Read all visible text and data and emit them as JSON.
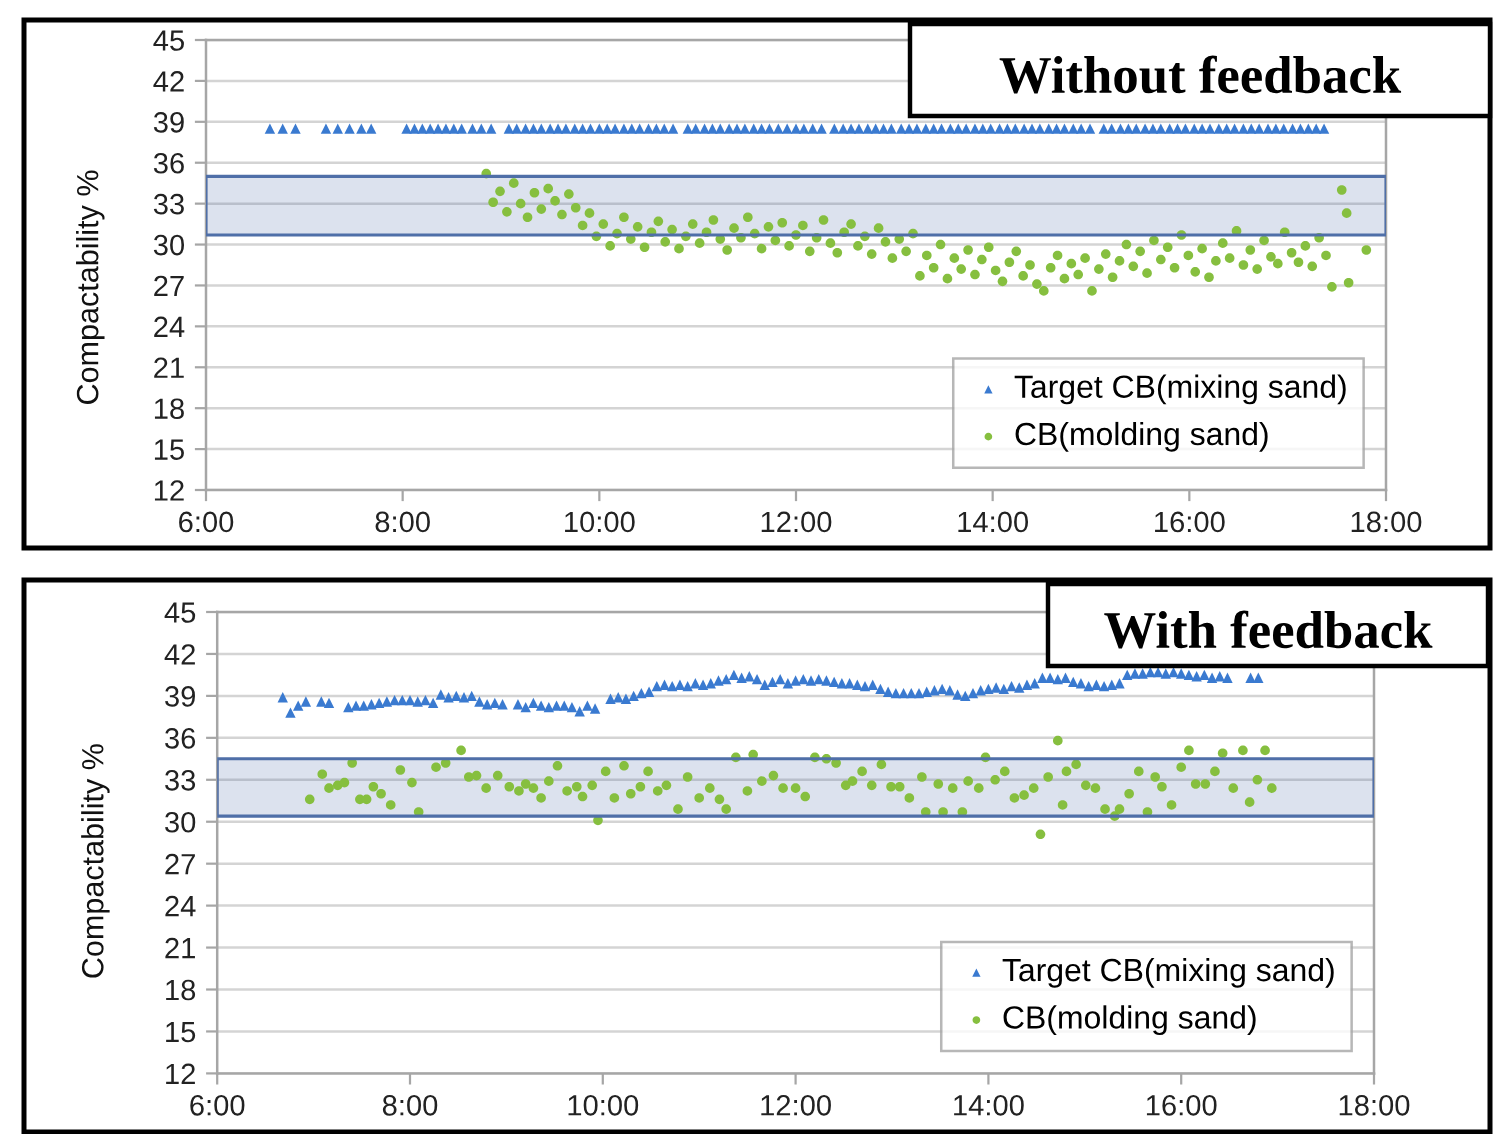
{
  "chart_data": [
    {
      "type": "scatter",
      "title": "Without feedback",
      "ylabel": "Compactability %",
      "xlim": [
        6,
        18
      ],
      "xticks": [
        {
          "value": 6,
          "label": "6:00"
        },
        {
          "value": 8,
          "label": "8:00"
        },
        {
          "value": 10,
          "label": "10:00"
        },
        {
          "value": 12,
          "label": "12:00"
        },
        {
          "value": 14,
          "label": "14:00"
        },
        {
          "value": 16,
          "label": "16:00"
        },
        {
          "value": 18,
          "label": "18:00"
        }
      ],
      "ylim": [
        12,
        45
      ],
      "yticks": [
        12,
        15,
        18,
        21,
        24,
        27,
        30,
        33,
        36,
        39,
        42,
        45
      ],
      "grid": "y",
      "legend": "bottom right",
      "bands": [
        {
          "axis": "y",
          "from": 30.7,
          "to": 35,
          "color": "#4f6fa8"
        }
      ],
      "series": [
        {
          "name": "Target CB(mixing sand)",
          "color": "#3a7ad0",
          "marker": "triangle",
          "x": [
            6.65,
            6.78,
            6.91,
            7.22,
            7.34,
            7.46,
            7.58,
            7.68,
            8.04,
            8.12,
            8.2,
            8.28,
            8.36,
            8.44,
            8.52,
            8.6,
            8.71,
            8.8,
            8.9,
            9.08,
            9.16,
            9.25,
            9.33,
            9.41,
            9.5,
            9.58,
            9.66,
            9.75,
            9.83,
            9.91,
            10.0,
            10.08,
            10.16,
            10.25,
            10.33,
            10.41,
            10.5,
            10.58,
            10.66,
            10.75,
            10.9,
            10.98,
            11.07,
            11.15,
            11.23,
            11.32,
            11.4,
            11.48,
            11.57,
            11.65,
            11.73,
            11.82,
            11.91,
            12.0,
            12.08,
            12.17,
            12.26,
            12.39,
            12.48,
            12.56,
            12.64,
            12.73,
            12.81,
            12.89,
            12.97,
            13.07,
            13.15,
            13.23,
            13.32,
            13.4,
            13.48,
            13.57,
            13.65,
            13.73,
            13.82,
            13.9,
            13.98,
            14.07,
            14.15,
            14.23,
            14.32,
            14.4,
            14.48,
            14.57,
            14.65,
            14.73,
            14.82,
            14.9,
            14.99,
            15.13,
            15.21,
            15.3,
            15.38,
            15.46,
            15.55,
            15.63,
            15.71,
            15.8,
            15.88,
            15.96,
            16.05,
            16.13,
            16.21,
            16.3,
            16.38,
            16.46,
            16.55,
            16.63,
            16.71,
            16.8,
            16.88,
            16.96,
            17.05,
            17.13,
            17.21,
            17.29,
            17.37
          ],
          "values": [
            38.5,
            38.5,
            38.5,
            38.5,
            38.5,
            38.5,
            38.5,
            38.5,
            38.5,
            38.5,
            38.5,
            38.5,
            38.5,
            38.5,
            38.5,
            38.5,
            38.5,
            38.5,
            38.5,
            38.5,
            38.5,
            38.5,
            38.5,
            38.5,
            38.5,
            38.5,
            38.5,
            38.5,
            38.5,
            38.5,
            38.5,
            38.5,
            38.5,
            38.5,
            38.5,
            38.5,
            38.5,
            38.5,
            38.5,
            38.5,
            38.5,
            38.5,
            38.5,
            38.5,
            38.5,
            38.5,
            38.5,
            38.5,
            38.5,
            38.5,
            38.5,
            38.5,
            38.5,
            38.5,
            38.5,
            38.5,
            38.5,
            38.5,
            38.5,
            38.5,
            38.5,
            38.5,
            38.5,
            38.5,
            38.5,
            38.5,
            38.5,
            38.5,
            38.5,
            38.5,
            38.5,
            38.5,
            38.5,
            38.5,
            38.5,
            38.5,
            38.5,
            38.5,
            38.5,
            38.5,
            38.5,
            38.5,
            38.5,
            38.5,
            38.5,
            38.5,
            38.5,
            38.5,
            38.5,
            38.5,
            38.5,
            38.5,
            38.5,
            38.5,
            38.5,
            38.5,
            38.5,
            38.5,
            38.5,
            38.5,
            38.5,
            38.5,
            38.5,
            38.5,
            38.5,
            38.5,
            38.5,
            38.5,
            38.5,
            38.5,
            38.5,
            38.5,
            38.5,
            38.5,
            38.5,
            38.5,
            38.5
          ]
        },
        {
          "name": "CB(molding sand)",
          "color": "#86bf3f",
          "marker": "circle",
          "x": [
            8.85,
            8.92,
            8.99,
            9.06,
            9.13,
            9.2,
            9.27,
            9.34,
            9.41,
            9.48,
            9.55,
            9.62,
            9.69,
            9.76,
            9.83,
            9.9,
            9.97,
            10.04,
            10.11,
            10.18,
            10.25,
            10.32,
            10.39,
            10.46,
            10.53,
            10.6,
            10.67,
            10.74,
            10.81,
            10.88,
            10.95,
            11.02,
            11.09,
            11.16,
            11.23,
            11.3,
            11.37,
            11.44,
            11.51,
            11.58,
            11.65,
            11.72,
            11.79,
            11.86,
            11.93,
            12.0,
            12.07,
            12.14,
            12.21,
            12.28,
            12.35,
            12.42,
            12.49,
            12.56,
            12.63,
            12.7,
            12.77,
            12.84,
            12.91,
            12.98,
            13.05,
            13.12,
            13.19,
            13.26,
            13.33,
            13.4,
            13.47,
            13.54,
            13.61,
            13.68,
            13.75,
            13.82,
            13.89,
            13.96,
            14.03,
            14.1,
            14.17,
            14.24,
            14.31,
            14.38,
            14.45,
            14.52,
            14.59,
            14.66,
            14.73,
            14.8,
            14.87,
            14.94,
            15.01,
            15.08,
            15.15,
            15.22,
            15.29,
            15.36,
            15.43,
            15.5,
            15.57,
            15.64,
            15.71,
            15.78,
            15.85,
            15.92,
            15.99,
            16.06,
            16.13,
            16.2,
            16.27,
            16.34,
            16.41,
            16.48,
            16.55,
            16.62,
            16.69,
            16.76,
            16.83,
            16.9,
            16.97,
            17.04,
            17.11,
            17.18,
            17.25,
            17.32,
            17.39,
            17.45,
            17.55,
            17.6,
            17.62,
            17.8
          ],
          "values": [
            35.2,
            33.1,
            33.9,
            32.4,
            34.5,
            33.0,
            32.0,
            33.8,
            32.6,
            34.1,
            33.2,
            32.2,
            33.7,
            32.7,
            31.4,
            32.3,
            30.6,
            31.5,
            29.9,
            30.8,
            32.0,
            30.4,
            31.3,
            29.8,
            30.9,
            31.7,
            30.2,
            31.1,
            29.7,
            30.6,
            31.5,
            30.1,
            30.9,
            31.8,
            30.4,
            29.6,
            31.2,
            30.5,
            32.0,
            30.8,
            29.7,
            31.3,
            30.3,
            31.6,
            29.9,
            30.7,
            31.4,
            29.5,
            30.5,
            31.8,
            30.1,
            29.4,
            30.9,
            31.5,
            29.9,
            30.6,
            29.3,
            31.2,
            30.2,
            29.0,
            30.4,
            29.5,
            30.8,
            27.7,
            29.2,
            28.3,
            30.0,
            27.5,
            29.0,
            28.2,
            29.6,
            27.8,
            28.9,
            29.8,
            28.1,
            27.3,
            28.7,
            29.5,
            27.7,
            28.5,
            27.1,
            26.6,
            28.3,
            29.2,
            27.5,
            28.6,
            27.8,
            29.0,
            26.6,
            28.2,
            29.3,
            27.6,
            28.8,
            30.0,
            28.4,
            29.5,
            27.9,
            30.3,
            28.9,
            29.8,
            28.3,
            30.7,
            29.2,
            28.0,
            29.7,
            27.6,
            28.8,
            30.1,
            29.0,
            31.0,
            28.5,
            29.6,
            28.2,
            30.3,
            29.1,
            28.6,
            30.9,
            29.4,
            28.7,
            29.9,
            28.4,
            30.5,
            29.2,
            26.9,
            34.0,
            32.3,
            27.2,
            29.6
          ]
        }
      ]
    },
    {
      "type": "scatter",
      "title": "With feedback",
      "ylabel": "Compactability %",
      "xlim": [
        6,
        18
      ],
      "xticks": [
        {
          "value": 6,
          "label": "6:00"
        },
        {
          "value": 8,
          "label": "8:00"
        },
        {
          "value": 10,
          "label": "10:00"
        },
        {
          "value": 12,
          "label": "12:00"
        },
        {
          "value": 14,
          "label": "14:00"
        },
        {
          "value": 16,
          "label": "16:00"
        },
        {
          "value": 18,
          "label": "18:00"
        }
      ],
      "ylim": [
        12,
        45
      ],
      "yticks": [
        12,
        15,
        18,
        21,
        24,
        27,
        30,
        33,
        36,
        39,
        42,
        45
      ],
      "grid": "y",
      "legend": "bottom right",
      "bands": [
        {
          "axis": "y",
          "from": 30.4,
          "to": 34.5,
          "color": "#4f6fa8"
        }
      ],
      "series": [
        {
          "name": "Target CB(mixing sand)",
          "color": "#3a7ad0",
          "marker": "triangle",
          "x": [
            6.68,
            6.76,
            6.84,
            6.92,
            7.08,
            7.16,
            7.36,
            7.44,
            7.52,
            7.6,
            7.68,
            7.76,
            7.84,
            7.92,
            8.0,
            8.08,
            8.16,
            8.24,
            8.32,
            8.4,
            8.48,
            8.56,
            8.64,
            8.72,
            8.8,
            8.88,
            8.96,
            9.12,
            9.2,
            9.28,
            9.36,
            9.44,
            9.52,
            9.6,
            9.68,
            9.76,
            9.84,
            9.92,
            10.08,
            10.16,
            10.24,
            10.32,
            10.4,
            10.48,
            10.56,
            10.64,
            10.72,
            10.8,
            10.88,
            10.96,
            11.04,
            11.12,
            11.2,
            11.28,
            11.36,
            11.44,
            11.52,
            11.6,
            11.68,
            11.76,
            11.84,
            11.92,
            12.0,
            12.08,
            12.16,
            12.24,
            12.32,
            12.4,
            12.48,
            12.56,
            12.64,
            12.72,
            12.8,
            12.88,
            12.96,
            13.04,
            13.12,
            13.2,
            13.28,
            13.36,
            13.44,
            13.52,
            13.6,
            13.68,
            13.76,
            13.84,
            13.92,
            14.0,
            14.08,
            14.16,
            14.24,
            14.32,
            14.4,
            14.48,
            14.56,
            14.64,
            14.72,
            14.8,
            14.88,
            14.96,
            15.04,
            15.12,
            15.2,
            15.28,
            15.36,
            15.44,
            15.52,
            15.6,
            15.68,
            15.76,
            15.84,
            15.92,
            16.0,
            16.08,
            16.16,
            16.24,
            16.32,
            16.4,
            16.48,
            16.72,
            16.8
          ],
          "values": [
            38.9,
            37.8,
            38.3,
            38.6,
            38.6,
            38.5,
            38.2,
            38.3,
            38.3,
            38.4,
            38.5,
            38.6,
            38.7,
            38.7,
            38.7,
            38.6,
            38.7,
            38.5,
            39.1,
            38.9,
            39.0,
            38.9,
            39.0,
            38.6,
            38.4,
            38.5,
            38.4,
            38.4,
            38.2,
            38.5,
            38.3,
            38.2,
            38.3,
            38.3,
            38.2,
            37.9,
            38.3,
            38.1,
            38.8,
            38.9,
            38.8,
            39.0,
            39.2,
            39.3,
            39.7,
            39.8,
            39.7,
            39.8,
            39.7,
            39.9,
            39.8,
            39.9,
            40.1,
            40.2,
            40.5,
            40.3,
            40.4,
            40.2,
            39.8,
            40.0,
            40.2,
            39.9,
            40.1,
            40.2,
            40.1,
            40.2,
            40.1,
            40.0,
            39.9,
            39.9,
            39.8,
            39.7,
            39.8,
            39.5,
            39.3,
            39.2,
            39.2,
            39.2,
            39.2,
            39.3,
            39.4,
            39.5,
            39.4,
            39.1,
            39.0,
            39.2,
            39.4,
            39.5,
            39.6,
            39.5,
            39.7,
            39.6,
            39.8,
            39.9,
            40.3,
            40.3,
            40.2,
            40.3,
            40.0,
            39.9,
            39.7,
            39.8,
            39.7,
            39.8,
            39.9,
            40.5,
            40.6,
            40.6,
            40.7,
            40.7,
            40.6,
            40.7,
            40.6,
            40.5,
            40.4,
            40.5,
            40.3,
            40.4,
            40.3,
            40.3,
            40.3
          ]
        },
        {
          "name": "CB(molding sand)",
          "color": "#86bf3f",
          "marker": "circle",
          "x": [
            6.96,
            7.09,
            7.16,
            7.25,
            7.32,
            7.4,
            7.48,
            7.55,
            7.62,
            7.7,
            7.8,
            7.9,
            8.02,
            8.09,
            8.27,
            8.37,
            8.53,
            8.61,
            8.69,
            8.79,
            8.91,
            9.03,
            9.13,
            9.2,
            9.28,
            9.36,
            9.44,
            9.53,
            9.63,
            9.73,
            9.79,
            9.89,
            9.95,
            10.03,
            10.12,
            10.22,
            10.29,
            10.39,
            10.47,
            10.57,
            10.66,
            10.78,
            10.88,
            11.0,
            11.11,
            11.21,
            11.28,
            11.38,
            11.5,
            11.56,
            11.65,
            11.77,
            11.87,
            12.0,
            12.1,
            12.2,
            12.32,
            12.42,
            12.52,
            12.59,
            12.69,
            12.79,
            12.89,
            12.99,
            13.08,
            13.18,
            13.31,
            13.35,
            13.48,
            13.53,
            13.63,
            13.73,
            13.79,
            13.9,
            13.97,
            14.07,
            14.17,
            14.27,
            14.37,
            14.47,
            14.54,
            14.62,
            14.72,
            14.77,
            14.81,
            14.91,
            15.01,
            15.11,
            15.21,
            15.31,
            15.36,
            15.46,
            15.56,
            15.65,
            15.73,
            15.8,
            15.9,
            16.0,
            16.08,
            16.15,
            16.25,
            16.35,
            16.43,
            16.54,
            16.64,
            16.71,
            16.79,
            16.87,
            16.94
          ],
          "values": [
            31.6,
            33.4,
            32.4,
            32.6,
            32.8,
            34.2,
            31.6,
            31.6,
            32.5,
            32.0,
            31.2,
            33.7,
            32.8,
            30.7,
            33.9,
            34.2,
            35.1,
            33.2,
            33.3,
            32.4,
            33.3,
            32.5,
            32.2,
            32.7,
            32.4,
            31.7,
            32.9,
            34.0,
            32.2,
            32.5,
            31.8,
            32.6,
            30.1,
            33.6,
            31.7,
            34.0,
            32.0,
            32.5,
            33.6,
            32.2,
            32.6,
            30.9,
            33.2,
            31.7,
            32.4,
            31.6,
            30.9,
            34.6,
            32.2,
            34.8,
            32.9,
            33.3,
            32.4,
            32.4,
            31.8,
            34.6,
            34.5,
            34.2,
            32.6,
            32.9,
            33.6,
            32.6,
            34.1,
            32.5,
            32.5,
            31.7,
            33.2,
            30.7,
            32.7,
            30.7,
            32.4,
            30.7,
            32.9,
            32.4,
            34.6,
            33.0,
            33.6,
            31.7,
            31.9,
            32.4,
            29.1,
            33.2,
            35.8,
            31.2,
            33.6,
            34.1,
            32.6,
            32.4,
            30.9,
            30.4,
            30.9,
            32.0,
            33.6,
            30.7,
            33.2,
            32.5,
            31.2,
            33.9,
            35.1,
            32.7,
            32.7,
            33.6,
            34.9,
            32.4,
            35.1,
            31.4,
            33.0,
            35.1,
            32.4
          ]
        }
      ]
    }
  ]
}
